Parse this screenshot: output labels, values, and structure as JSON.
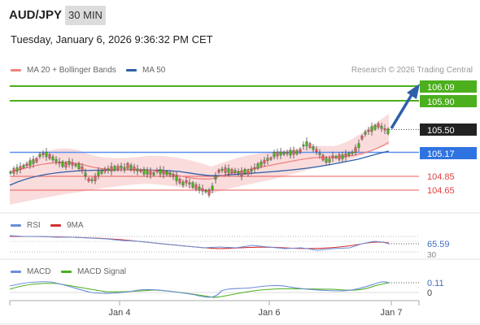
{
  "header": {
    "symbol": "AUD/JPY",
    "timeframe": "30 MIN",
    "datetime": "Tuesday, January 6, 2026 9:36:32 PM CET"
  },
  "legend": {
    "ma20": "MA 20 + Bollinger Bands",
    "ma50": "MA 50",
    "rsi": "RSI",
    "nine_ma": "9MA",
    "macd": "MACD",
    "macd_signal": "MACD Signal"
  },
  "credit": "Research © 2026 Trading Central",
  "colors": {
    "up": "#4caf1e",
    "down": "#e85a5a",
    "pivot": "#5b8ff0",
    "arrow": "#2f5fa8",
    "price": "#222222",
    "bollinger": "#f9d6d6",
    "ma20": "#f08080",
    "ma50": "#2f5fa8",
    "rsi": "#6a8ed8",
    "rsi_ma": "#d03030",
    "macd": "#6a8ed8",
    "macd_signal": "#4caf1e"
  },
  "levels": {
    "r2": "106.09",
    "r1": "105.90",
    "last": "105.50",
    "pivot": "105.17",
    "s1": "104.85",
    "s2": "104.65"
  },
  "indicators": {
    "rsi_value": "65.59",
    "rsi_scale_hint": "30",
    "macd_value": "0.11",
    "macd_zero": "0"
  },
  "xaxis": [
    "Jan 4",
    "Jan 6",
    "Jan 7"
  ],
  "chart_data": {
    "type": "candlestick",
    "title": "AUD/JPY",
    "timeframe": "30 MIN",
    "y_unit": "JPY",
    "resistance_levels": [
      106.09,
      105.9
    ],
    "pivot": 105.17,
    "support_levels": [
      104.85,
      104.65
    ],
    "last_price": 105.5,
    "close_path": [
      {
        "x": "start",
        "y": 104.98
      },
      {
        "x": "Jan 4",
        "y": 104.86
      },
      {
        "x": "Jan 5",
        "y": 104.72
      },
      {
        "x": "Jan 6",
        "y": 105.1
      },
      {
        "x": "Jan 6 late",
        "y": 105.05
      },
      {
        "x": "Jan 7",
        "y": 105.5
      }
    ],
    "rsi_last": 65.59,
    "macd_last": 0.11
  }
}
